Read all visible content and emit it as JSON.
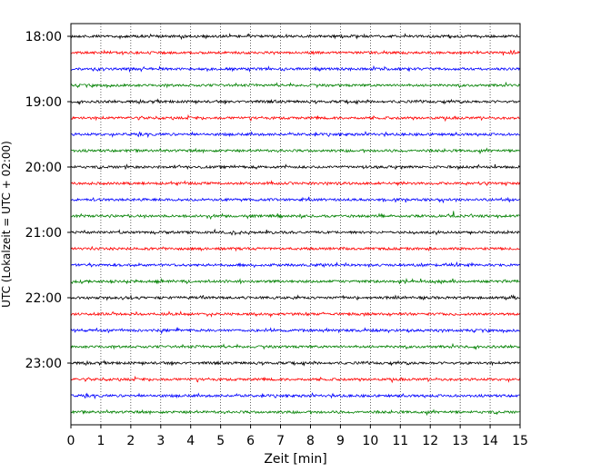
{
  "chart_data": {
    "type": "line",
    "title": "",
    "xlabel": "Zeit  [min]",
    "ylabel": "UTC (Lokalzeit = UTC + 02:00)",
    "xlim": [
      0,
      15
    ],
    "x_ticks": [
      "0",
      "1",
      "2",
      "3",
      "4",
      "5",
      "6",
      "7",
      "8",
      "9",
      "10",
      "11",
      "12",
      "13",
      "14",
      "15"
    ],
    "y_ticks": [
      {
        "label": "18:00",
        "trace": 0
      },
      {
        "label": "19:00",
        "trace": 4
      },
      {
        "label": "20:00",
        "trace": 8
      },
      {
        "label": "21:00",
        "trace": 12
      },
      {
        "label": "22:00",
        "trace": 16
      },
      {
        "label": "23:00",
        "trace": 20
      }
    ],
    "grid": "vertical-dotted",
    "trace_interval_minutes": 15,
    "trace_colors": [
      "#000000",
      "#ff0000",
      "#0000ff",
      "#008000"
    ],
    "traces": [
      {
        "start": "18:00"
      },
      {
        "start": "18:15"
      },
      {
        "start": "18:30"
      },
      {
        "start": "18:45"
      },
      {
        "start": "19:00"
      },
      {
        "start": "19:15"
      },
      {
        "start": "19:30"
      },
      {
        "start": "19:45"
      },
      {
        "start": "20:00"
      },
      {
        "start": "20:15"
      },
      {
        "start": "20:30"
      },
      {
        "start": "20:45"
      },
      {
        "start": "21:00"
      },
      {
        "start": "21:15"
      },
      {
        "start": "21:30"
      },
      {
        "start": "21:45"
      },
      {
        "start": "22:00"
      },
      {
        "start": "22:15"
      },
      {
        "start": "22:30"
      },
      {
        "start": "22:45"
      },
      {
        "start": "23:00"
      },
      {
        "start": "23:15"
      },
      {
        "start": "23:30"
      },
      {
        "start": "23:45"
      }
    ]
  }
}
